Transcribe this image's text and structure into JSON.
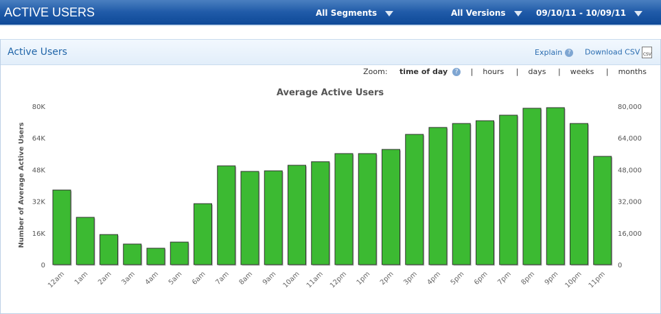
{
  "header": {
    "title": "ACTIVE USERS",
    "segments": "All Segments",
    "versions": "All Versions",
    "date_range": "09/10/11 - 10/09/11"
  },
  "panel": {
    "title": "Active Users",
    "explain": "Explain",
    "download": "Download CSV",
    "csv_icon_text": "CSV"
  },
  "zoom": {
    "label": "Zoom:",
    "options": [
      "time of day",
      "hours",
      "days",
      "weeks",
      "months"
    ],
    "selected": "time of day",
    "sep": "|"
  },
  "colors": {
    "bar": "#3cba32",
    "header": "#1f5aa8"
  },
  "chart_data": {
    "type": "bar",
    "title": "Average Active Users",
    "ylabel": "Number of Average Active Users",
    "categories": [
      "12am",
      "1am",
      "2am",
      "3am",
      "4am",
      "5am",
      "6am",
      "7am",
      "8am",
      "9am",
      "10am",
      "11am",
      "12pm",
      "1pm",
      "2pm",
      "3pm",
      "4pm",
      "5pm",
      "6pm",
      "7pm",
      "8pm",
      "9pm",
      "10pm",
      "11pm"
    ],
    "values": [
      37700,
      23900,
      15200,
      10400,
      8300,
      11400,
      30800,
      49900,
      47100,
      47400,
      50200,
      52000,
      56100,
      56100,
      58200,
      65800,
      69300,
      71300,
      72700,
      75500,
      79000,
      79300,
      71300,
      54700
    ],
    "ylim": [
      0,
      80000
    ],
    "left_ticks": [
      "0",
      "16K",
      "32K",
      "48K",
      "64K",
      "80K"
    ],
    "right_ticks": [
      "0",
      "16,000",
      "32,000",
      "48,000",
      "64,000",
      "80,000"
    ]
  }
}
